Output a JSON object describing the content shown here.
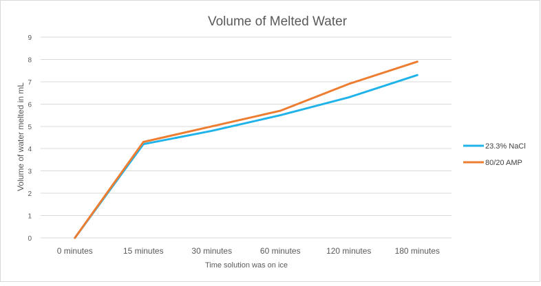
{
  "chart_data": {
    "type": "line",
    "title": "Volume of Melted Water",
    "xlabel": "Time solution was on ice",
    "ylabel": "Volume of water melted in mL",
    "categories": [
      "0 minutes",
      "15 minutes",
      "30 minutes",
      "60 minutes",
      "120 minutes",
      "180 minutes"
    ],
    "ylim": [
      0,
      9
    ],
    "yticks": [
      0,
      1,
      2,
      3,
      4,
      5,
      6,
      7,
      8,
      9
    ],
    "grid": true,
    "legend_position": "right",
    "series": [
      {
        "name": "23.3% NaCl",
        "color": "#1fb3ea",
        "values": [
          0,
          4.2,
          4.8,
          5.5,
          6.3,
          7.3
        ]
      },
      {
        "name": "80/20 AMP",
        "color": "#ed7d31",
        "values": [
          0,
          4.3,
          5.0,
          5.7,
          6.9,
          7.9
        ]
      }
    ]
  }
}
